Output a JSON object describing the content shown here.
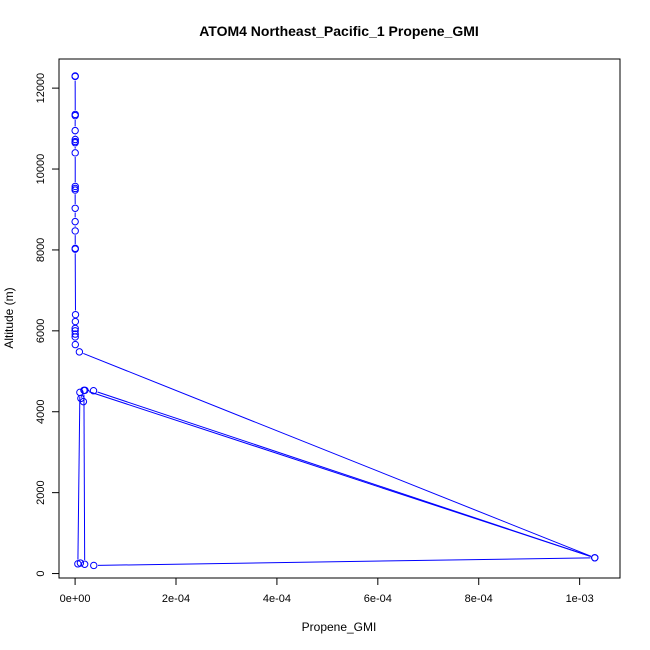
{
  "chart_data": {
    "type": "line",
    "title": "ATOM4 Northeast_Pacific_1 Propene_GMI",
    "xlabel": "Propene_GMI",
    "ylabel": "Altitude (m)",
    "xlim": [
      -3.19e-05,
      0.00108
    ],
    "ylim": [
      -110,
      12720
    ],
    "xticks": [
      {
        "value": 0,
        "label": "0e+00"
      },
      {
        "value": 0.0002,
        "label": "2e-04"
      },
      {
        "value": 0.0004,
        "label": "4e-04"
      },
      {
        "value": 0.0006,
        "label": "6e-04"
      },
      {
        "value": 0.0008,
        "label": "8e-04"
      },
      {
        "value": 0.001,
        "label": "1e-03"
      }
    ],
    "yticks": [
      {
        "value": 0,
        "label": "0"
      },
      {
        "value": 2000,
        "label": "2000"
      },
      {
        "value": 4000,
        "label": "4000"
      },
      {
        "value": 6000,
        "label": "6000"
      },
      {
        "value": 8000,
        "label": "8000"
      },
      {
        "value": 10000,
        "label": "10000"
      },
      {
        "value": 12000,
        "label": "12000"
      }
    ],
    "grid": false,
    "color": "#0000ff",
    "series": [
      {
        "points": [
          {
            "x": 2e-07,
            "y": 12300
          },
          {
            "x": 1e-07,
            "y": 12290
          },
          {
            "x": 3e-07,
            "y": 11350
          },
          {
            "x": 2e-07,
            "y": 11320
          },
          {
            "x": 1e-07,
            "y": 10950
          },
          {
            "x": 3e-07,
            "y": 10730
          },
          {
            "x": 2e-07,
            "y": 10680
          },
          {
            "x": 1e-07,
            "y": 10650
          },
          {
            "x": 2e-07,
            "y": 10400
          },
          {
            "x": 3e-07,
            "y": 9570
          },
          {
            "x": 2e-07,
            "y": 9520
          },
          {
            "x": 1e-07,
            "y": 9480
          },
          {
            "x": 2e-07,
            "y": 9030
          },
          {
            "x": 1e-07,
            "y": 8700
          },
          {
            "x": 2e-07,
            "y": 8470
          },
          {
            "x": 3e-07,
            "y": 8040
          },
          {
            "x": 2e-07,
            "y": 8020
          },
          {
            "x": 8e-07,
            "y": 6400
          },
          {
            "x": 5e-07,
            "y": 6230
          },
          {
            "x": 2e-07,
            "y": 6060
          },
          {
            "x": 1e-07,
            "y": 6000
          },
          {
            "x": 3e-07,
            "y": 5920
          },
          {
            "x": 2e-07,
            "y": 5850
          },
          {
            "x": 4e-07,
            "y": 5660
          },
          {
            "x": 8.5e-06,
            "y": 5480
          },
          {
            "x": 0.00103,
            "y": 390
          },
          {
            "x": 1.95e-05,
            "y": 4530
          },
          {
            "x": 1.15e-05,
            "y": 4330
          },
          {
            "x": 1.65e-05,
            "y": 4250
          },
          {
            "x": 9.5e-06,
            "y": 4480
          },
          {
            "x": 5.5e-06,
            "y": 240
          },
          {
            "x": 1.05e-05,
            "y": 260
          },
          {
            "x": 1.9e-05,
            "y": 230
          },
          {
            "x": 1.75e-05,
            "y": 4530
          },
          {
            "x": 3.65e-05,
            "y": 4520
          },
          {
            "x": 0.00103,
            "y": 390
          },
          {
            "x": 3.7e-05,
            "y": 200
          }
        ]
      }
    ]
  }
}
